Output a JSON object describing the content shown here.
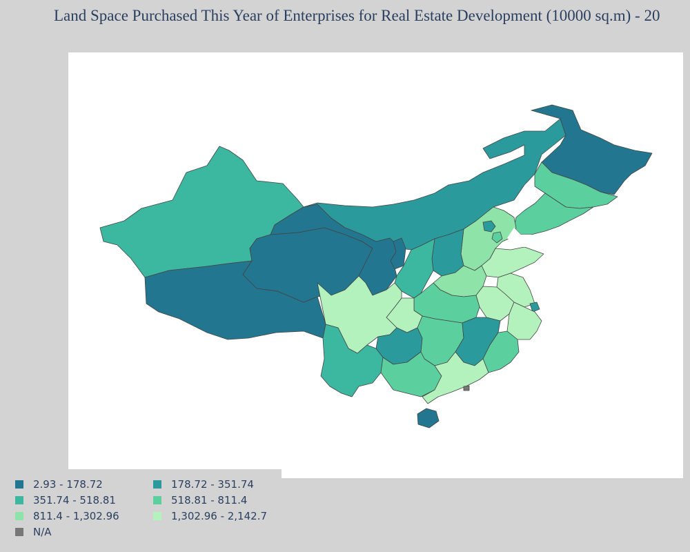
{
  "title": "Land Space Purchased This Year of Enterprises for Real Estate Development (10000 sq.m) - 20",
  "legend": {
    "items": [
      {
        "label": "2.93 - 178.72",
        "color": "#23768f"
      },
      {
        "label": "178.72 - 351.74",
        "color": "#2b9a9c"
      },
      {
        "label": "351.74 - 518.81",
        "color": "#3cb7a0"
      },
      {
        "label": "518.81 - 811.4",
        "color": "#5ccf9f"
      },
      {
        "label": "811.4 - 1,302.96",
        "color": "#8ee3a8"
      },
      {
        "label": "1,302.96 - 2,142.7",
        "color": "#b3f1bd"
      },
      {
        "label": "N/A",
        "color": "#777777"
      }
    ]
  },
  "chart_data": {
    "type": "choropleth",
    "title": "Land Space Purchased This Year of Enterprises for Real Estate Development (10000 sq.m) - 20",
    "regions": [
      {
        "name": "Heilongjiang",
        "class": "2.93 - 178.72"
      },
      {
        "name": "Inner Mongolia",
        "class": "178.72 - 351.74"
      },
      {
        "name": "Xinjiang",
        "class": "351.74 - 518.81"
      },
      {
        "name": "Tibet",
        "class": "2.93 - 178.72"
      },
      {
        "name": "Qinghai",
        "class": "2.93 - 178.72"
      },
      {
        "name": "Gansu",
        "class": "2.93 - 178.72"
      },
      {
        "name": "Ningxia",
        "class": "2.93 - 178.72"
      },
      {
        "name": "Jilin",
        "class": "518.81 - 811.4"
      },
      {
        "name": "Liaoning",
        "class": "518.81 - 811.4"
      },
      {
        "name": "Beijing",
        "class": "178.72 - 351.74"
      },
      {
        "name": "Tianjin",
        "class": "518.81 - 811.4"
      },
      {
        "name": "Hebei",
        "class": "811.4 - 1,302.96"
      },
      {
        "name": "Shanxi",
        "class": "178.72 - 351.74"
      },
      {
        "name": "Shaanxi",
        "class": "351.74 - 518.81"
      },
      {
        "name": "Shandong",
        "class": "1,302.96 - 2,142.7"
      },
      {
        "name": "Henan",
        "class": "811.4 - 1,302.96"
      },
      {
        "name": "Jiangsu",
        "class": "1,302.96 - 2,142.7"
      },
      {
        "name": "Anhui",
        "class": "1,302.96 - 2,142.7"
      },
      {
        "name": "Shanghai",
        "class": "178.72 - 351.74"
      },
      {
        "name": "Zhejiang",
        "class": "1,302.96 - 2,142.7"
      },
      {
        "name": "Hubei",
        "class": "518.81 - 811.4"
      },
      {
        "name": "Chongqing",
        "class": "1,302.96 - 2,142.7"
      },
      {
        "name": "Sichuan",
        "class": "1,302.96 - 2,142.7"
      },
      {
        "name": "Hunan",
        "class": "518.81 - 811.4"
      },
      {
        "name": "Jiangxi",
        "class": "178.72 - 351.74"
      },
      {
        "name": "Fujian",
        "class": "518.81 - 811.4"
      },
      {
        "name": "Guizhou",
        "class": "178.72 - 351.74"
      },
      {
        "name": "Yunnan",
        "class": "351.74 - 518.81"
      },
      {
        "name": "Guangxi",
        "class": "518.81 - 811.4"
      },
      {
        "name": "Guangdong",
        "class": "1,302.96 - 2,142.7"
      },
      {
        "name": "Hainan",
        "class": "2.93 - 178.72"
      },
      {
        "name": "Hong Kong",
        "class": "N/A"
      }
    ]
  }
}
